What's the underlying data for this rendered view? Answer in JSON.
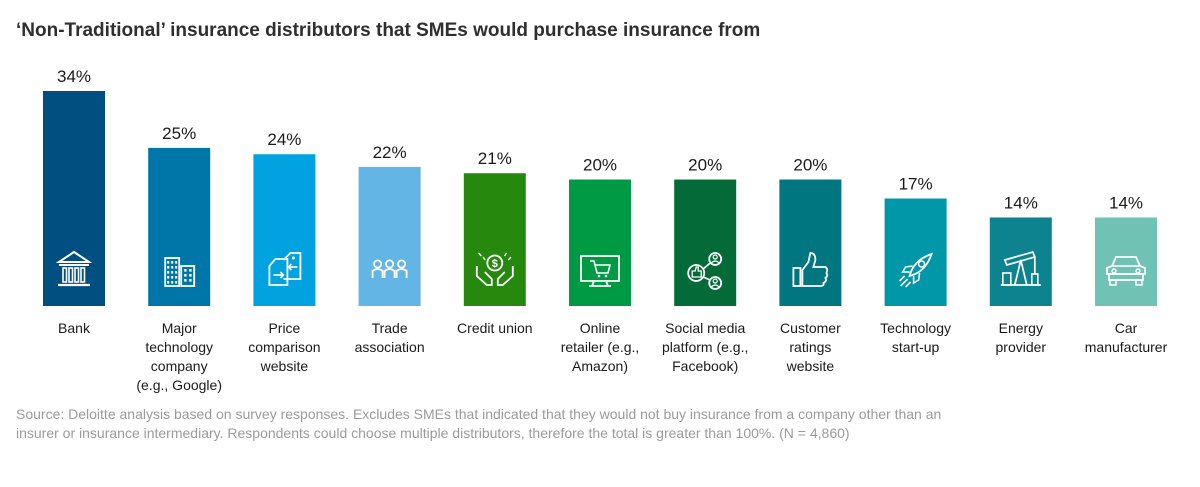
{
  "chart_data": {
    "type": "bar",
    "title": "‘Non-Traditional’ insurance distributors that SMEs would purchase insurance from",
    "xlabel": "",
    "ylabel": "",
    "unit": "%",
    "ylim": [
      0,
      34
    ],
    "grid": false,
    "categories": [
      "Bank",
      "Major technology company (e.g., Google)",
      "Price comparison website",
      "Trade association",
      "Credit union",
      "Online retailer (e.g., Amazon)",
      "Social media platform (e.g., Facebook)",
      "Customer ratings website",
      "Technology start-up",
      "Energy provider",
      "Car manufacturer"
    ],
    "category_lines": [
      [
        "Bank"
      ],
      [
        "Major",
        "technology",
        "company",
        "(e.g., Google)"
      ],
      [
        "Price",
        "comparison",
        "website"
      ],
      [
        "Trade",
        "association"
      ],
      [
        "Credit union"
      ],
      [
        "Online",
        "retailer (e.g.,",
        "Amazon)"
      ],
      [
        "Social media",
        "platform (e.g.,",
        "Facebook)"
      ],
      [
        "Customer",
        "ratings",
        "website"
      ],
      [
        "Technology",
        "start-up"
      ],
      [
        "Energy",
        "provider"
      ],
      [
        "Car",
        "manufacturer"
      ]
    ],
    "values": [
      34,
      25,
      24,
      22,
      21,
      20,
      20,
      20,
      17,
      14,
      14
    ],
    "value_labels": [
      "34%",
      "25%",
      "24%",
      "22%",
      "21%",
      "20%",
      "20%",
      "20%",
      "17%",
      "14%",
      "14%"
    ],
    "colors": [
      "#004f80",
      "#0076a8",
      "#00a3e0",
      "#62b5e5",
      "#26890d",
      "#009a44",
      "#046a38",
      "#007680",
      "#0097a9",
      "#0d8390",
      "#6fc2b4"
    ],
    "icons": [
      "bank-icon",
      "buildings-icon",
      "price-tags-icon",
      "people-chain-icon",
      "money-hands-icon",
      "shopping-cart-icon",
      "social-network-icon",
      "thumbs-up-icon",
      "rocket-icon",
      "oil-pump-icon",
      "car-icon"
    ]
  },
  "source_note": "Source: Deloitte analysis based on survey responses. Excludes SMEs that indicated that they would not buy insurance from a company other than an insurer or insurance intermediary. Respondents could choose multiple distributors, therefore the total is greater than 100%. (N = 4,860)"
}
